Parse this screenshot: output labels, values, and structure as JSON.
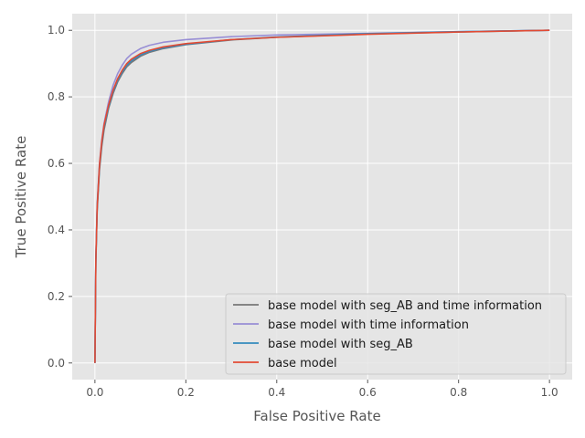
{
  "chart_data": {
    "type": "line",
    "title": "",
    "xlabel": "False Positive Rate",
    "ylabel": "True Positive Rate",
    "xlim": [
      -0.05,
      1.05
    ],
    "ylim": [
      -0.05,
      1.05
    ],
    "xticks": [
      0.0,
      0.2,
      0.4,
      0.6,
      0.8,
      1.0
    ],
    "yticks": [
      0.0,
      0.2,
      0.4,
      0.6,
      0.8,
      1.0
    ],
    "xtick_labels": [
      "0.0",
      "0.2",
      "0.4",
      "0.6",
      "0.8",
      "1.0"
    ],
    "ytick_labels": [
      "0.0",
      "0.2",
      "0.4",
      "0.6",
      "0.8",
      "1.0"
    ],
    "grid": true,
    "background": "#e5e5e5",
    "legend_position": "lower-right",
    "series": [
      {
        "name": "base model with seg_AB and time information",
        "color": "#777777",
        "x": [
          0,
          0.002,
          0.005,
          0.01,
          0.015,
          0.02,
          0.03,
          0.04,
          0.05,
          0.06,
          0.07,
          0.08,
          0.1,
          0.12,
          0.15,
          0.2,
          0.3,
          0.4,
          0.6,
          0.8,
          1.0
        ],
        "y": [
          0,
          0.3,
          0.46,
          0.58,
          0.65,
          0.7,
          0.765,
          0.81,
          0.845,
          0.87,
          0.89,
          0.903,
          0.922,
          0.934,
          0.945,
          0.957,
          0.971,
          0.979,
          0.989,
          0.995,
          1.0
        ]
      },
      {
        "name": "base model with time information",
        "color": "#988ed5",
        "x": [
          0,
          0.002,
          0.005,
          0.01,
          0.015,
          0.02,
          0.03,
          0.04,
          0.05,
          0.06,
          0.07,
          0.08,
          0.1,
          0.12,
          0.15,
          0.2,
          0.3,
          0.4,
          0.6,
          0.8,
          1.0
        ],
        "y": [
          0,
          0.32,
          0.48,
          0.6,
          0.67,
          0.72,
          0.785,
          0.835,
          0.87,
          0.895,
          0.915,
          0.928,
          0.945,
          0.955,
          0.964,
          0.972,
          0.981,
          0.986,
          0.991,
          0.996,
          1.0
        ]
      },
      {
        "name": "base model with seg_AB",
        "color": "#348abd",
        "x": [
          0,
          0.002,
          0.005,
          0.01,
          0.015,
          0.02,
          0.03,
          0.04,
          0.05,
          0.06,
          0.07,
          0.08,
          0.1,
          0.12,
          0.15,
          0.2,
          0.3,
          0.4,
          0.6,
          0.8,
          1.0
        ],
        "y": [
          0,
          0.31,
          0.47,
          0.59,
          0.66,
          0.71,
          0.77,
          0.815,
          0.85,
          0.875,
          0.895,
          0.908,
          0.926,
          0.937,
          0.947,
          0.958,
          0.972,
          0.98,
          0.99,
          0.996,
          1.0
        ]
      },
      {
        "name": "base model",
        "color": "#e24a33",
        "x": [
          0,
          0.002,
          0.005,
          0.01,
          0.015,
          0.02,
          0.03,
          0.04,
          0.05,
          0.06,
          0.07,
          0.08,
          0.1,
          0.12,
          0.15,
          0.2,
          0.3,
          0.4,
          0.6,
          0.8,
          1.0
        ],
        "y": [
          0,
          0.31,
          0.47,
          0.595,
          0.665,
          0.715,
          0.775,
          0.82,
          0.855,
          0.88,
          0.9,
          0.913,
          0.93,
          0.94,
          0.95,
          0.96,
          0.972,
          0.979,
          0.988,
          0.995,
          1.0
        ]
      }
    ]
  }
}
